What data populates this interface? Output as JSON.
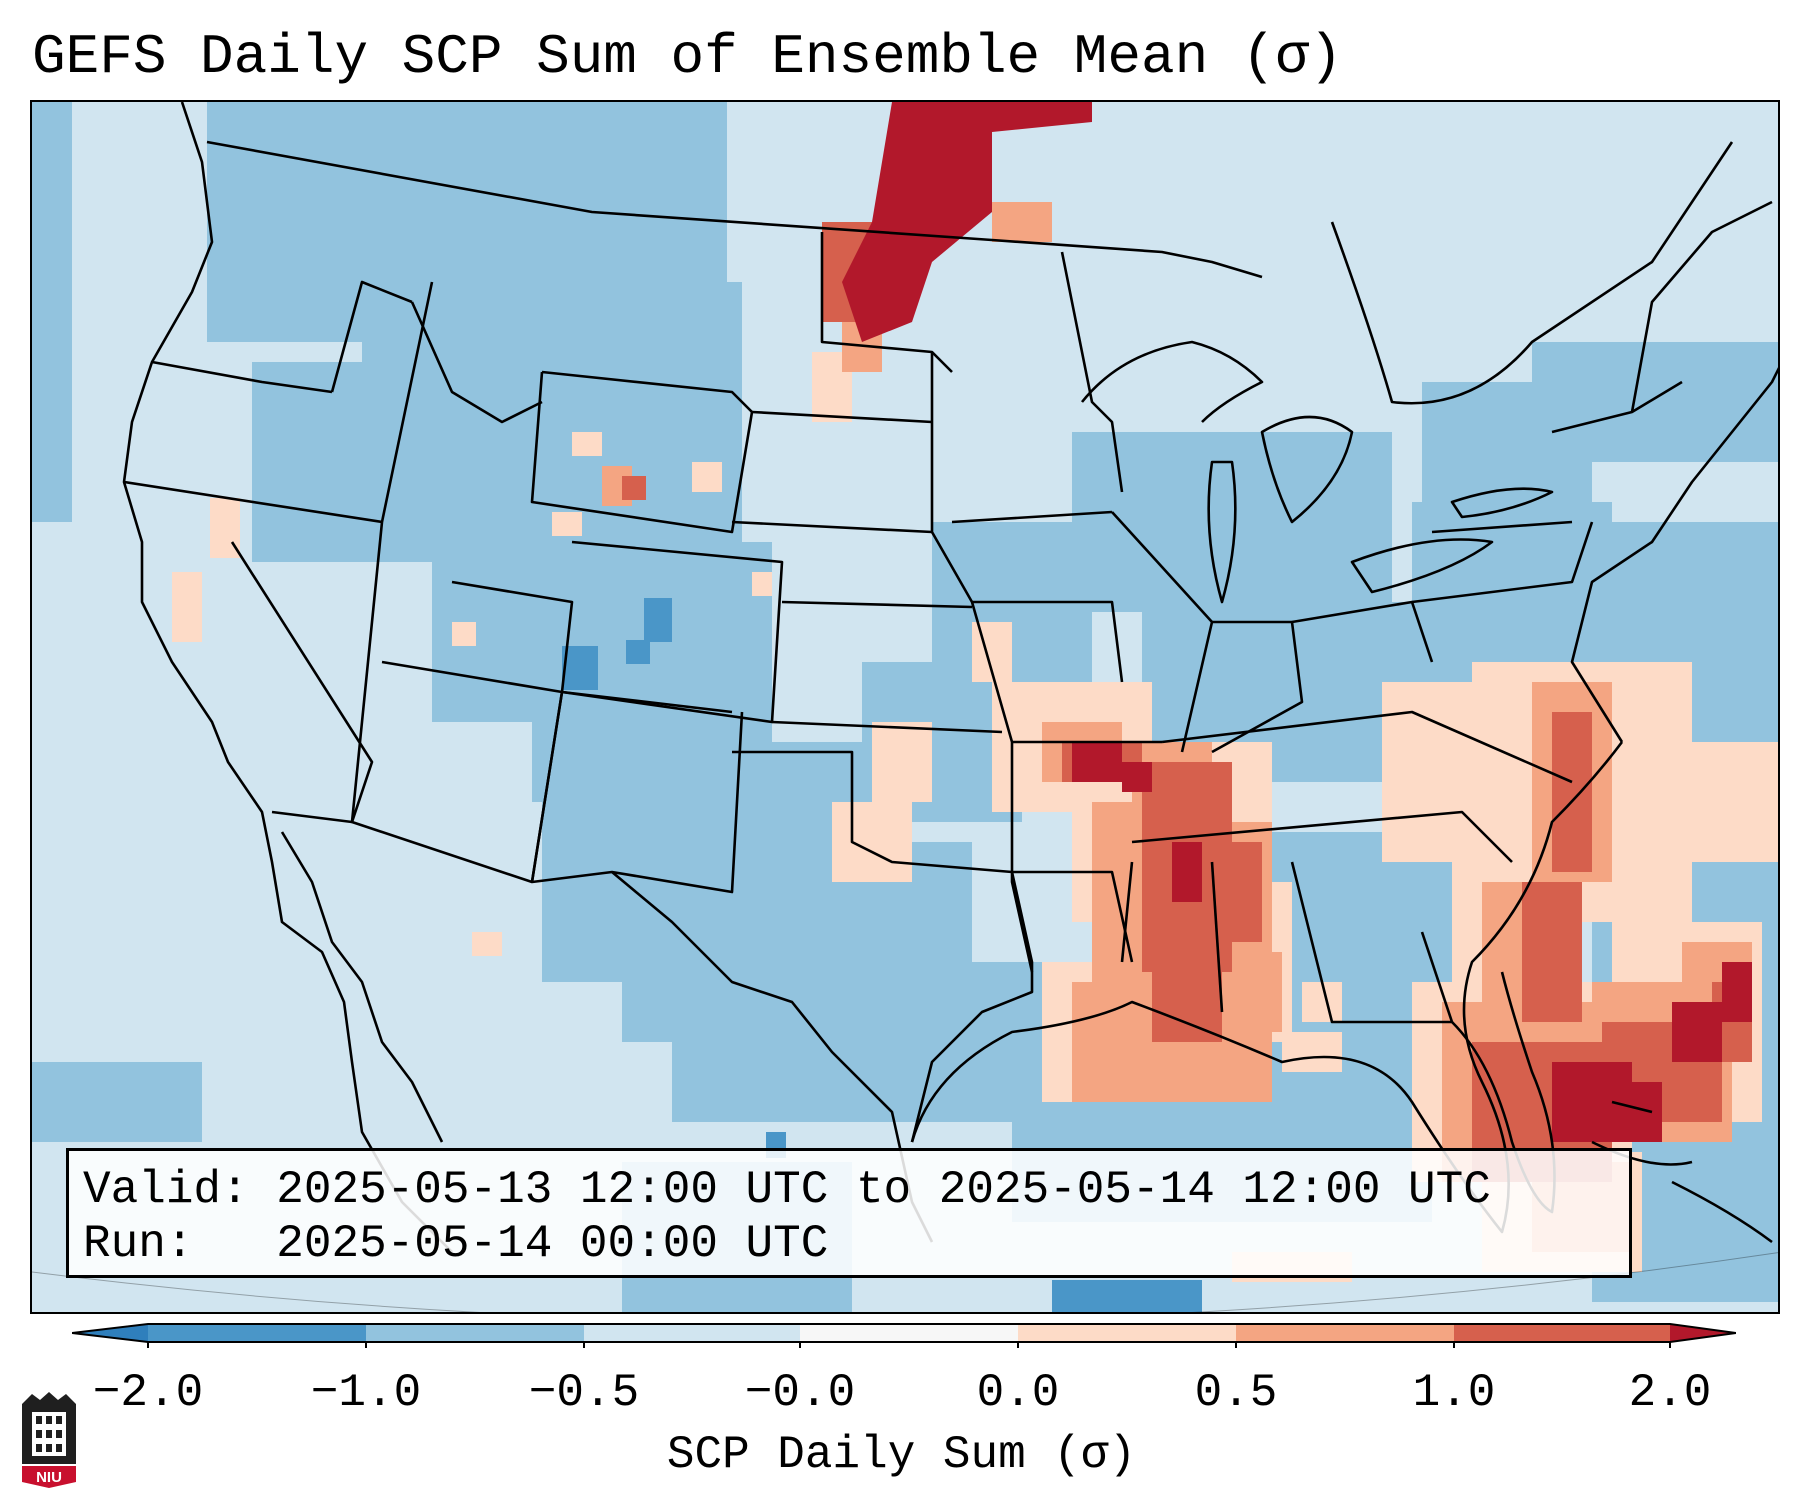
{
  "title": "GEFS Daily SCP Sum of Ensemble Mean (σ)",
  "info": {
    "valid_label": "Valid:",
    "valid_value": "2025-05-13 12:00 UTC to 2025-05-14 12:00 UTC",
    "run_label": "Run:",
    "run_value": "2025-05-14 00:00 UTC"
  },
  "colorbar": {
    "label": "SCP Daily Sum (σ)",
    "ticks": [
      "−2.0",
      "−1.0",
      "−0.5",
      "−0.0",
      "0.0",
      "0.5",
      "1.0",
      "2.0"
    ],
    "colors": {
      "extend_low": "#2f7fbc",
      "lt_neg1": "#4a96c8",
      "neg1_neg05": "#92c3de",
      "neg05_0": "#d1e5f0",
      "zero": "#f7f7f7",
      "pos0_05": "#fddbc7",
      "pos05_1": "#f4a582",
      "pos1_2": "#d6604d",
      "extend_high": "#b2182b"
    }
  },
  "logo_text": "NIU"
}
